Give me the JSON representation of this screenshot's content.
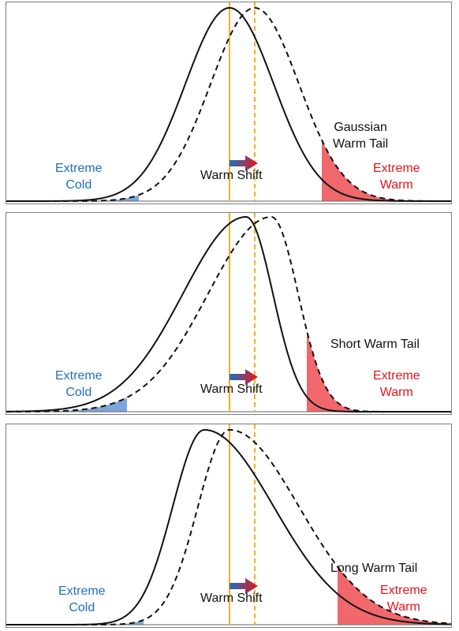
{
  "colors": {
    "cold": "#1f6fbf",
    "warm": "#e8141b",
    "cold_fill": "#7ea6dc",
    "warm_fill": "#f0686c",
    "mean_line": "#f4b01f",
    "curve": "#111111"
  },
  "labels": {
    "extreme_cold": [
      "Extreme",
      "Cold"
    ],
    "extreme_warm": [
      "Extreme",
      "Warm"
    ],
    "warm_shift": "Warm Shift"
  },
  "panels": [
    {
      "tail_label": [
        "Gaussian",
        "Warm Tail"
      ],
      "shape": "gaussian"
    },
    {
      "tail_label": [
        "Short Warm Tail"
      ],
      "shape": "left-skewed"
    },
    {
      "tail_label": [
        "Long Warm Tail"
      ],
      "shape": "right-skewed"
    }
  ]
}
